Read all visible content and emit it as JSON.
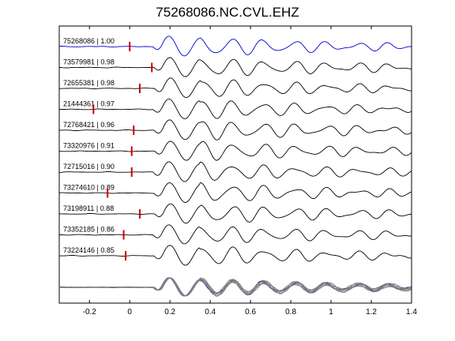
{
  "chart_data": {
    "type": "line",
    "title": "75268086.NC.CVL.EHZ",
    "xlabel": "",
    "ylabel": "",
    "xlim": [
      -0.35,
      1.4
    ],
    "xticks": [
      -0.2,
      0,
      0.2,
      0.4,
      0.6,
      0.8,
      1,
      1.2,
      1.4
    ],
    "xtick_labels": [
      "-0.2",
      "0",
      "0.2",
      "0.4",
      "0.6",
      "0.8",
      "1",
      "1.2",
      "1.4"
    ],
    "grid": false,
    "colors": {
      "reference": "#0000cc",
      "trace": "#000000",
      "stack": "#7f7f7f",
      "pick": "#cc0000"
    },
    "traces": [
      {
        "label": "75268086 | 1.00",
        "pick": 0.0,
        "reference": true
      },
      {
        "label": "73579981 | 0.98",
        "pick": 0.11
      },
      {
        "label": "72655381 | 0.98",
        "pick": 0.05
      },
      {
        "label": "21444361 | 0.97",
        "pick": -0.18
      },
      {
        "label": "72768421 | 0.96",
        "pick": 0.02
      },
      {
        "label": "73320976 | 0.91",
        "pick": 0.01
      },
      {
        "label": "72715016 | 0.90",
        "pick": 0.01
      },
      {
        "label": "73274610 | 0.89",
        "pick": -0.11
      },
      {
        "label": "73198911 | 0.88",
        "pick": 0.05
      },
      {
        "label": "73352185 | 0.86",
        "pick": -0.03
      },
      {
        "label": "73224146 | 0.85",
        "pick": -0.02
      }
    ]
  }
}
